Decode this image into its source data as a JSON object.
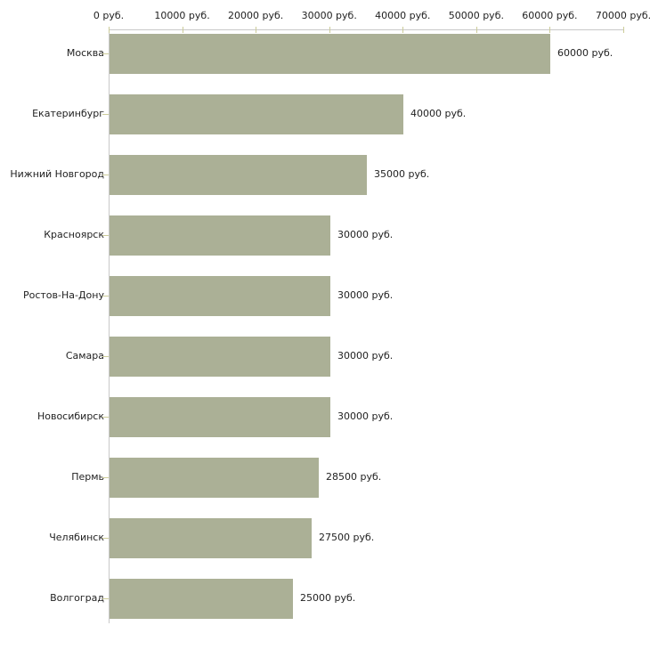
{
  "chart_data": {
    "type": "bar",
    "orientation": "horizontal",
    "title": "",
    "xlabel": "",
    "ylabel": "",
    "categories": [
      "Москва",
      "Екатеринбург",
      "Нижний Новгород",
      "Красноярск",
      "Ростов-На-Дону",
      "Самара",
      "Новосибирск",
      "Пермь",
      "Челябинск",
      "Волгоград"
    ],
    "values": [
      60000,
      40000,
      35000,
      30000,
      30000,
      30000,
      30000,
      28500,
      27500,
      25000
    ],
    "value_labels": [
      "60000 руб.",
      "40000 руб.",
      "35000 руб.",
      "30000 руб.",
      "30000 руб.",
      "30000 руб.",
      "30000 руб.",
      "28500 руб.",
      "27500 руб.",
      "25000 руб."
    ],
    "xlim": [
      0,
      70000
    ],
    "x_ticks": [
      0,
      10000,
      20000,
      30000,
      40000,
      50000,
      60000,
      70000
    ],
    "x_tick_labels": [
      "0 руб.",
      "10000 руб.",
      "20000 руб.",
      "30000 руб.",
      "40000 руб.",
      "50000 руб.",
      "60000 руб.",
      "70000 руб."
    ],
    "grid": false,
    "legend": null,
    "axis_position": "top",
    "colors": {
      "bar": "#ABB096",
      "axis_line": "#C9C9C9",
      "tick_mark": "#CCCC99",
      "text": "#222222",
      "background": "#ffffff"
    }
  }
}
